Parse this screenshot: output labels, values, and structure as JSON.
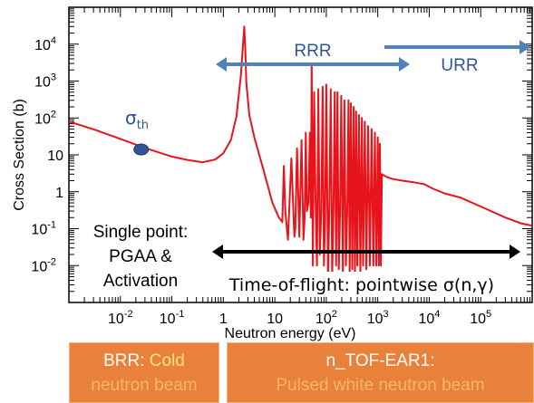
{
  "chart_data": {
    "type": "line",
    "title": "",
    "xlabel": "Neutron energy (eV)",
    "ylabel": "Cross Section (b)",
    "xscale": "log",
    "yscale": "log",
    "xlim": [
      0.001,
      1000000
    ],
    "ylim": [
      0.001,
      100000
    ],
    "grid": false,
    "line_color": "#e8141b",
    "x_ticks": [
      {
        "value": 0.01,
        "base": "10",
        "exp": "-2"
      },
      {
        "value": 0.1,
        "base": "10",
        "exp": "-1"
      },
      {
        "value": 1,
        "base": "1",
        "exp": ""
      },
      {
        "value": 10,
        "base": "10",
        "exp": ""
      },
      {
        "value": 100,
        "base": "10",
        "exp": "2"
      },
      {
        "value": 1000,
        "base": "10",
        "exp": "3"
      },
      {
        "value": 10000,
        "base": "10",
        "exp": "4"
      },
      {
        "value": 100000,
        "base": "10",
        "exp": "5"
      }
    ],
    "y_ticks": [
      {
        "value": 0.01,
        "base": "10",
        "exp": "-2"
      },
      {
        "value": 0.1,
        "base": "10",
        "exp": "-1"
      },
      {
        "value": 1,
        "base": "1",
        "exp": ""
      },
      {
        "value": 10,
        "base": "10",
        "exp": ""
      },
      {
        "value": 100,
        "base": "10",
        "exp": "2"
      },
      {
        "value": 1000,
        "base": "10",
        "exp": "3"
      },
      {
        "value": 10000,
        "base": "10",
        "exp": "4"
      }
    ],
    "series": [
      {
        "name": "",
        "x": [
          0.001,
          0.00316,
          0.01,
          0.0316,
          0.1,
          0.2,
          0.4,
          0.7,
          1.0,
          1.4,
          1.8,
          2.2,
          2.55,
          2.67,
          2.8,
          3.2,
          4,
          6,
          9,
          12,
          14,
          15,
          16,
          18,
          21,
          23,
          24,
          25,
          27,
          30,
          33,
          36,
          38,
          40,
          42,
          45,
          48,
          50,
          52,
          55,
          58,
          62,
          66,
          70,
          75,
          80,
          85,
          90,
          95,
          100,
          108,
          115,
          122,
          130,
          138,
          146,
          155,
          165,
          175,
          185,
          195,
          210,
          225,
          240,
          255,
          270,
          285,
          300,
          320,
          340,
          360,
          380,
          400,
          430,
          460,
          490,
          520,
          560,
          600,
          650,
          700,
          760,
          820,
          880,
          940,
          1000,
          1050,
          1100,
          1150,
          1200,
          1500,
          2000,
          3000,
          5000,
          8000,
          12000,
          20000,
          40000,
          100000,
          300000,
          600000,
          1000000
        ],
        "y": [
          80,
          48,
          27,
          15,
          9,
          7.3,
          6.3,
          7.5,
          11,
          25,
          110,
          1500,
          30000,
          8000,
          900,
          120,
          30,
          4,
          0.5,
          0.2,
          0.15,
          5,
          0.3,
          0.05,
          8,
          0.3,
          0.06,
          0.1,
          15,
          0.06,
          25,
          0.05,
          0.2,
          40,
          0.3,
          0.5,
          40,
          0.2,
          3000,
          0.01,
          500,
          0.5,
          0.01,
          600,
          0.02,
          0.3,
          700,
          0.01,
          0.2,
          800,
          0.005,
          0.4,
          600,
          0.005,
          0.3,
          500,
          0.01,
          500,
          0.008,
          0.3,
          400,
          0.006,
          300,
          0.01,
          0.3,
          300,
          0.006,
          250,
          0.008,
          200,
          0.005,
          150,
          0.01,
          120,
          0.005,
          100,
          0.01,
          80,
          0.008,
          60,
          0.01,
          50,
          0.01,
          40,
          0.01,
          30,
          0.01,
          20,
          0.01,
          3,
          2.5,
          2.2,
          2.0,
          1.8,
          1.6,
          1.2,
          0.9,
          0.7,
          0.4,
          0.2,
          0.14,
          0.12
        ]
      }
    ],
    "sigma_th_point": {
      "x": 0.0253,
      "y": 14
    },
    "annotations": {
      "rrr": "RRR",
      "urr": "URR",
      "sigma_th": {
        "base": "σ",
        "sub": "th"
      },
      "single_point": [
        "Single point:",
        "PGAA &",
        "Activation"
      ],
      "tof": "Time-of-flight:  pointwise σ(n,γ)"
    },
    "arrows": [
      {
        "name": "rrr-arrow",
        "x_from": 1.0,
        "x_to": 2000,
        "y": 2000,
        "color": "#4f81bd"
      },
      {
        "name": "urr-arrow",
        "x_from": 1000,
        "x_to": 1000000,
        "y": 5000,
        "color": "#4f81bd"
      },
      {
        "name": "tof-arrow",
        "x_from": 1.0,
        "x_to": 1000000,
        "y": 0.02,
        "color": "#000000"
      }
    ]
  },
  "facilities": {
    "brr": {
      "name": "BRR:",
      "rest": " Cold",
      "line2": "neutron beam"
    },
    "ntof": {
      "line1": "n_TOF-EAR1:",
      "line2": "Pulsed white neutron beam"
    }
  },
  "colors": {
    "box_fill": "#e8823a",
    "arrow_blue": "#4f81bd",
    "curve_red": "#e8141b",
    "label_blue": "#2e5597"
  }
}
